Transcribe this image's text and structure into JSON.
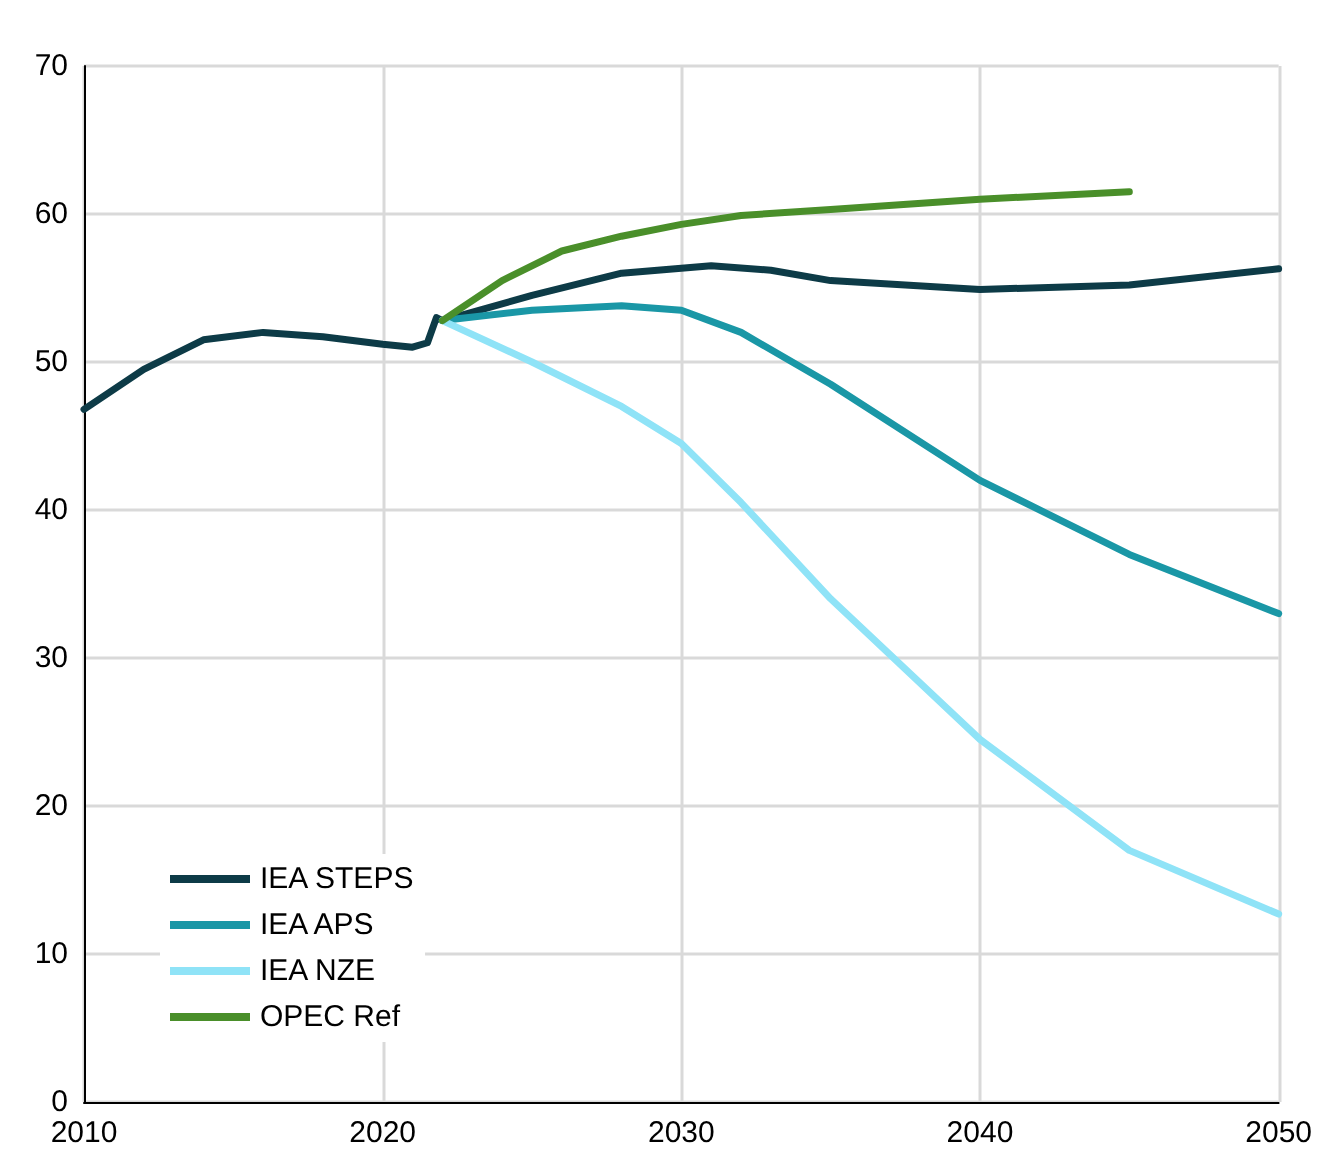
{
  "chart_data": {
    "type": "line",
    "xlim": [
      2010,
      2050
    ],
    "xticks": [
      2010,
      2020,
      2030,
      2040,
      2050
    ],
    "ylim": [
      0,
      70
    ],
    "yticks": [
      0,
      10,
      20,
      30,
      40,
      50,
      60,
      70
    ],
    "grid": true,
    "legend": "bottom left",
    "marker": "none",
    "line_style": "solid",
    "series": [
      {
        "name": "IEA STEPS",
        "color": "#0d3b47",
        "x": [
          2010,
          2012,
          2014,
          2016,
          2018,
          2020,
          2021,
          2021.5,
          2021.8,
          2022,
          2025,
          2028,
          2031,
          2033,
          2035,
          2040,
          2045,
          2050
        ],
        "values": [
          46.8,
          49.5,
          51.5,
          52,
          51.7,
          51.2,
          51,
          51.3,
          53,
          52.8,
          54.5,
          56,
          56.5,
          56.2,
          55.5,
          54.9,
          55.2,
          56.3
        ]
      },
      {
        "name": "IEA APS",
        "color": "#1a97a6",
        "x": [
          2022,
          2025,
          2028,
          2030,
          2032,
          2035,
          2040,
          2045,
          2050
        ],
        "values": [
          52.8,
          53.5,
          53.8,
          53.5,
          52,
          48.5,
          42,
          37,
          33
        ]
      },
      {
        "name": "IEA NZE",
        "color": "#8fe3f7",
        "x": [
          2022,
          2025,
          2028,
          2030,
          2032,
          2035,
          2040,
          2045,
          2050
        ],
        "values": [
          52.8,
          50,
          47,
          44.5,
          40.5,
          34,
          24.5,
          17,
          12.7
        ]
      },
      {
        "name": "OPEC Ref",
        "color": "#4a8f2a",
        "x": [
          2022,
          2024,
          2026,
          2028,
          2030,
          2032,
          2035,
          2040,
          2045
        ],
        "values": [
          52.8,
          55.5,
          57.5,
          58.5,
          59.3,
          59.9,
          60.3,
          61,
          61.5
        ]
      }
    ]
  }
}
